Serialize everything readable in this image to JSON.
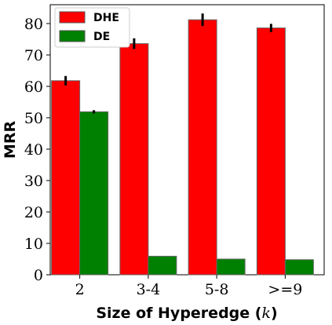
{
  "chart_data": {
    "type": "bar",
    "categories": [
      "2",
      "3-4",
      "5-8",
      ">=9"
    ],
    "series": [
      {
        "name": "DHE",
        "values": [
          61.8,
          73.6,
          81.2,
          78.6
        ],
        "errors": [
          1.5,
          1.7,
          2.0,
          1.3
        ],
        "color": "#ff0000"
      },
      {
        "name": "DE",
        "values": [
          51.9,
          5.9,
          5.0,
          4.8
        ],
        "errors": [
          0.5,
          0,
          0,
          0
        ],
        "color": "#008000"
      }
    ],
    "xlabel_text": "Size of Hyperedge (",
    "xlabel_var": "k",
    "xlabel_close": ")",
    "ylabel": "MRR",
    "ylim": [
      0,
      86
    ],
    "yticks": [
      0,
      10,
      20,
      30,
      40,
      50,
      60,
      70,
      80
    ],
    "legend_position": "top-left",
    "grid": false
  }
}
